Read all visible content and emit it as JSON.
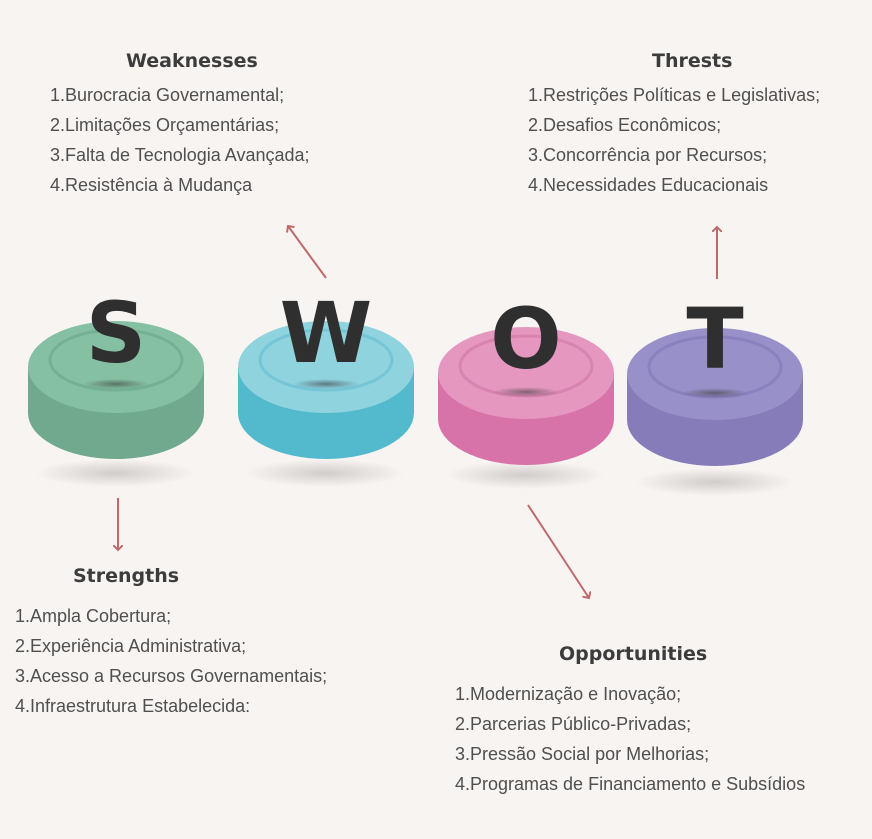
{
  "letters": {
    "s": "S",
    "w": "W",
    "o": "O",
    "t": "T"
  },
  "colors": {
    "s_top": "#86c0a2",
    "s_side": "#70a98d",
    "w_top": "#8fd3df",
    "w_side": "#53b9cc",
    "o_top": "#e597c0",
    "o_side": "#d873a9",
    "t_top": "#9890c8",
    "t_side": "#857cb9",
    "arrow": "#bf6a6a",
    "letter": "#2f2f2f"
  },
  "weaknesses": {
    "title": "Weaknesses",
    "items": [
      {
        "n": "1.",
        "text": "Burocracia Governamental;"
      },
      {
        "n": "2.",
        "text": "Limitações Orçamentárias;"
      },
      {
        "n": "3.",
        "text": "Falta de Tecnologia Avançada;"
      },
      {
        "n": "4.",
        "text": "Resistência à Mudança"
      }
    ]
  },
  "threats": {
    "title": "Thrests",
    "items": [
      {
        "n": "1.",
        "text": "Restrições Políticas e Legislativas;"
      },
      {
        "n": "2.",
        "text": "Desafios Econômicos;"
      },
      {
        "n": "3.",
        "text": "Concorrência por Recursos;"
      },
      {
        "n": "4.",
        "text": "Necessidades Educacionais"
      }
    ]
  },
  "strengths": {
    "title": "Strengths",
    "items": [
      {
        "n": "1.",
        "text": "Ampla Cobertura;"
      },
      {
        "n": "2.",
        "text": "Experiência Administrativa;"
      },
      {
        "n": "3.",
        "text": "Acesso a Recursos Governamentais;"
      },
      {
        "n": "4.",
        "text": "Infraestrutura Estabelecida:"
      }
    ]
  },
  "opportunities": {
    "title": "Opportunities",
    "items": [
      {
        "n": "1.",
        "text": "Modernização e Inovação;"
      },
      {
        "n": "2.",
        "text": "Parcerias Público-Privadas;"
      },
      {
        "n": "3.",
        "text": "Pressão Social por Melhorias;"
      },
      {
        "n": "4.",
        "text": "Programas de Financiamento e Subsídios"
      }
    ]
  }
}
